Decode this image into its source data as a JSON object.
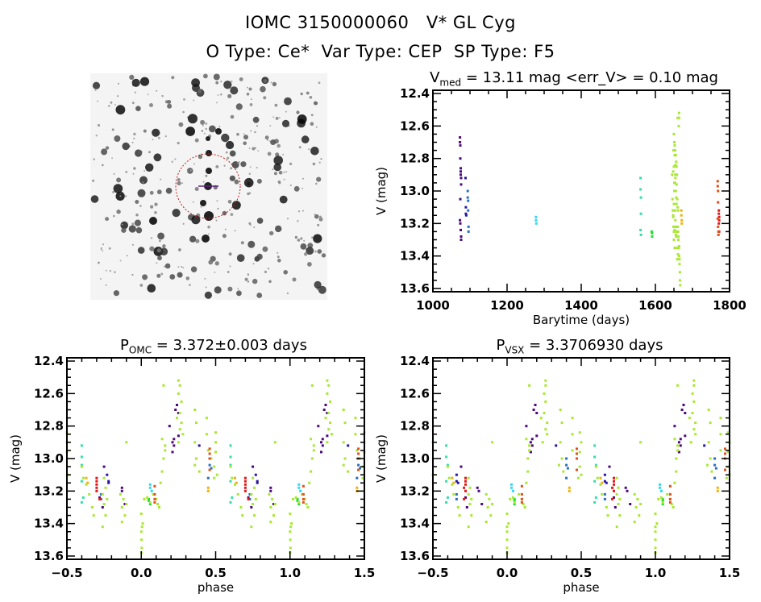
{
  "header": {
    "title": "IOMC 3150000060   V* GL Cyg",
    "subtitle": "O Type: Ce*  Var Type: CEP  SP Type: F5"
  },
  "chart_data": {
    "type": "scatter",
    "columns": [
      "barytime_days",
      "V_mag",
      "phase_omc",
      "phase_vsx"
    ],
    "panels": [
      {
        "title_main": "V",
        "title_sub": "med",
        "title_rest": " = 13.11 mag <err_V> = 0.10 mag",
        "xlabel": "Barytime (days)",
        "ylabel": "V (mag)",
        "x_column": "barytime_days",
        "xlim": [
          1000,
          1800
        ],
        "ylim": [
          13.62,
          12.38
        ],
        "xticks": [
          "1000",
          "1200",
          "1400",
          "1600",
          "1800"
        ],
        "yticks": [
          "12.4",
          "12.6",
          "12.8",
          "13.0",
          "13.2",
          "13.4",
          "13.6"
        ]
      },
      {
        "title_main": "P",
        "title_sub": "OMC",
        "title_rest": " = 3.372±0.003 days",
        "xlabel": "phase",
        "ylabel": "V (mag)",
        "x_column": "phase_omc",
        "xlim": [
          -0.5,
          1.5
        ],
        "ylim": [
          13.62,
          12.38
        ],
        "xticks": [
          "-0.5",
          "0.0",
          "0.5",
          "1.0",
          "1.5"
        ],
        "yticks": [
          "12.4",
          "12.6",
          "12.8",
          "13.0",
          "13.2",
          "13.4",
          "13.6"
        ]
      },
      {
        "title_main": "P",
        "title_sub": "VSX",
        "title_rest": " = 3.3706930 days",
        "xlabel": "phase",
        "ylabel": "V (mag)",
        "x_column": "phase_vsx",
        "xlim": [
          -0.5,
          1.5
        ],
        "ylim": [
          13.62,
          12.38
        ],
        "xticks": [
          "-0.5",
          "0.0",
          "0.5",
          "1.0",
          "1.5"
        ],
        "yticks": [
          "12.4",
          "12.6",
          "12.8",
          "13.0",
          "13.2",
          "13.4",
          "13.6"
        ]
      }
    ],
    "series": [
      {
        "color": "#4b0a7a",
        "points": [
          [
            1073,
            12.67,
            0.24,
            0.19
          ],
          [
            1073,
            12.7,
            0.23,
            0.18
          ],
          [
            1074,
            12.72,
            0.25,
            0.2
          ],
          [
            1074,
            12.8,
            0.19,
            0.13
          ],
          [
            1075,
            12.86,
            0.25,
            0.2
          ],
          [
            1075,
            12.88,
            0.22,
            0.17
          ],
          [
            1075,
            12.9,
            0.21,
            0.16
          ],
          [
            1076,
            12.92,
            0.22,
            0.17
          ],
          [
            1076,
            12.96,
            0.21,
            0.16
          ],
          [
            1074,
            13.05,
            0.75,
            0.69
          ],
          [
            1073,
            13.18,
            0.87,
            0.8
          ],
          [
            1074,
            13.2,
            0.87,
            0.81
          ],
          [
            1075,
            13.24,
            0.72,
            0.72
          ],
          [
            1076,
            13.28,
            0.89,
            0.83
          ],
          [
            1076,
            13.3,
            0.74,
            0.73
          ]
        ]
      },
      {
        "color": "#2818a0",
        "points": [
          [
            1088,
            12.92,
            0.39,
            0.33
          ],
          [
            1089,
            13.1,
            0.77,
            0.66
          ],
          [
            1089,
            13.14,
            0.78,
            0.66
          ],
          [
            1090,
            13.15,
            0.78,
            0.67
          ]
        ]
      },
      {
        "color": "#2a70c0",
        "points": [
          [
            1094,
            13.0,
            0.46,
            0.4
          ],
          [
            1094,
            13.04,
            0.46,
            0.4
          ],
          [
            1095,
            13.06,
            0.47,
            0.41
          ],
          [
            1095,
            13.12,
            0.45,
            0.4
          ],
          [
            1096,
            13.22,
            0.73,
            0.66
          ],
          [
            1096,
            13.25,
            0.73,
            0.66
          ]
        ]
      },
      {
        "color": "#30d8f0",
        "points": [
          [
            1278,
            13.16,
            0.06,
            0.03
          ],
          [
            1278,
            13.18,
            0.06,
            0.03
          ],
          [
            1279,
            13.2,
            0.07,
            0.04
          ]
        ]
      },
      {
        "color": "#30e0a8",
        "points": [
          [
            1560,
            12.92,
            0.6,
            0.59
          ],
          [
            1560,
            12.99,
            0.6,
            0.59
          ],
          [
            1561,
            13.04,
            0.6,
            0.6
          ],
          [
            1561,
            13.14,
            0.6,
            0.59
          ],
          [
            1560,
            13.24,
            0.61,
            0.6
          ],
          [
            1561,
            13.27,
            0.6,
            0.59
          ]
        ]
      },
      {
        "color": "#20e030",
        "points": [
          [
            1590,
            13.25,
            0.05,
            0.05
          ],
          [
            1591,
            13.26,
            0.05,
            0.05
          ],
          [
            1591,
            13.28,
            0.06,
            0.05
          ]
        ]
      },
      {
        "color": "#a8e830",
        "points": [
          [
            1664,
            13.34,
            0.0,
            0.0
          ],
          [
            1665,
            13.42,
            0.005,
            0.0
          ],
          [
            1665,
            13.45,
            0.0,
            0.0
          ],
          [
            1666,
            13.5,
            0.002,
            0.0
          ],
          [
            1666,
            13.55,
            0.003,
            0.0
          ],
          [
            1667,
            13.58,
            0.001,
            0.0
          ],
          [
            1664,
            13.4,
            0.01,
            0.01
          ],
          [
            1650,
            13.25,
            0.02,
            0.02
          ],
          [
            1652,
            13.24,
            0.04,
            0.04
          ],
          [
            1655,
            13.27,
            0.06,
            0.05
          ],
          [
            1657,
            13.22,
            0.08,
            0.08
          ],
          [
            1660,
            13.28,
            0.11,
            0.11
          ],
          [
            1662,
            13.3,
            0.12,
            0.12
          ],
          [
            1658,
            13.25,
            0.1,
            0.1
          ],
          [
            1648,
            13.15,
            0.13,
            0.13
          ],
          [
            1650,
            13.08,
            0.14,
            0.14
          ],
          [
            1651,
            13.0,
            0.15,
            0.14
          ],
          [
            1653,
            12.95,
            0.16,
            0.15
          ],
          [
            1648,
            12.88,
            0.14,
            0.13
          ],
          [
            1654,
            12.92,
            0.16,
            0.15
          ],
          [
            1660,
            12.55,
            0.15,
            0.15
          ],
          [
            1664,
            12.52,
            0.25,
            0.26
          ],
          [
            1664,
            12.55,
            0.26,
            0.26
          ],
          [
            1663,
            12.6,
            0.25,
            0.25
          ],
          [
            1650,
            12.65,
            0.27,
            0.26
          ],
          [
            1652,
            12.72,
            0.26,
            0.25
          ],
          [
            1653,
            12.75,
            0.24,
            0.23
          ],
          [
            1655,
            12.78,
            0.27,
            0.27
          ],
          [
            1656,
            12.82,
            0.26,
            0.26
          ],
          [
            1657,
            12.85,
            0.28,
            0.27
          ],
          [
            1658,
            12.9,
            0.25,
            0.24
          ],
          [
            1651,
            12.7,
            0.36,
            0.36
          ],
          [
            1652,
            12.78,
            0.37,
            0.37
          ],
          [
            1654,
            12.9,
            0.36,
            0.36
          ],
          [
            1655,
            13.0,
            0.37,
            0.37
          ],
          [
            1656,
            13.04,
            0.36,
            0.35
          ],
          [
            1657,
            13.08,
            0.39,
            0.38
          ],
          [
            1649,
            12.75,
            0.44,
            0.44
          ],
          [
            1650,
            12.85,
            0.44,
            0.44
          ],
          [
            1651,
            12.95,
            0.45,
            0.44
          ],
          [
            1653,
            13.0,
            0.47,
            0.47
          ],
          [
            1654,
            12.84,
            0.5,
            0.49
          ],
          [
            1656,
            12.9,
            0.5,
            0.5
          ],
          [
            1657,
            12.96,
            0.5,
            0.49
          ],
          [
            1659,
            13.05,
            0.49,
            0.49
          ],
          [
            1660,
            13.1,
            0.51,
            0.5
          ],
          [
            1661,
            13.12,
            0.49,
            0.48
          ],
          [
            1646,
            13.05,
            0.6,
            0.6
          ],
          [
            1647,
            13.12,
            0.61,
            0.61
          ],
          [
            1648,
            13.16,
            0.63,
            0.63
          ],
          [
            1649,
            13.22,
            0.65,
            0.64
          ],
          [
            1650,
            13.3,
            0.67,
            0.67
          ],
          [
            1652,
            13.35,
            0.68,
            0.68
          ],
          [
            1653,
            13.12,
            0.75,
            0.74
          ],
          [
            1654,
            13.18,
            0.76,
            0.75
          ],
          [
            1655,
            13.22,
            0.74,
            0.74
          ],
          [
            1656,
            13.28,
            0.75,
            0.75
          ],
          [
            1657,
            13.25,
            0.77,
            0.76
          ],
          [
            1658,
            13.35,
            0.76,
            0.76
          ],
          [
            1659,
            13.42,
            0.74,
            0.74
          ],
          [
            1660,
            13.22,
            0.86,
            0.86
          ],
          [
            1661,
            13.25,
            0.88,
            0.88
          ],
          [
            1662,
            13.3,
            0.87,
            0.87
          ],
          [
            1663,
            13.35,
            0.89,
            0.89
          ],
          [
            1661,
            13.39,
            0.87,
            0.86
          ],
          [
            1662,
            13.28,
            0.9,
            0.9
          ],
          [
            1645,
            12.9,
            0.9,
            0.9
          ]
        ]
      },
      {
        "color": "#f0b010",
        "points": [
          [
            1670,
            13.12,
            0.63,
            0.63
          ],
          [
            1670,
            13.15,
            0.64,
            0.64
          ],
          [
            1671,
            13.18,
            0.45,
            0.42
          ],
          [
            1671,
            13.2,
            0.45,
            0.42
          ]
        ]
      },
      {
        "color": "#e01818",
        "points": [
          [
            1771,
            13.12,
            0.7,
            0.72
          ],
          [
            1771,
            13.14,
            0.7,
            0.72
          ],
          [
            1772,
            13.16,
            0.7,
            0.72
          ],
          [
            1772,
            13.18,
            0.7,
            0.71
          ],
          [
            1771,
            13.2,
            0.7,
            0.72
          ],
          [
            1772,
            13.25,
            0.72,
            0.71
          ]
        ]
      },
      {
        "color": "#e05018",
        "points": [
          [
            1768,
            12.94,
            0.46,
            0.47
          ],
          [
            1768,
            12.97,
            0.46,
            0.47
          ],
          [
            1769,
            13.0,
            0.46,
            0.47
          ],
          [
            1769,
            13.07,
            0.46,
            0.47
          ],
          [
            1768,
            13.17,
            0.09,
            0.1
          ],
          [
            1769,
            13.22,
            0.09,
            0.1
          ],
          [
            1770,
            13.25,
            0.09,
            0.1
          ],
          [
            1770,
            13.27,
            0.09,
            0.1
          ]
        ]
      }
    ]
  },
  "finder_image": {
    "target_marker": "red dashed circle",
    "colors": {
      "circle": "#c02020",
      "crosshair": "#602080"
    }
  }
}
